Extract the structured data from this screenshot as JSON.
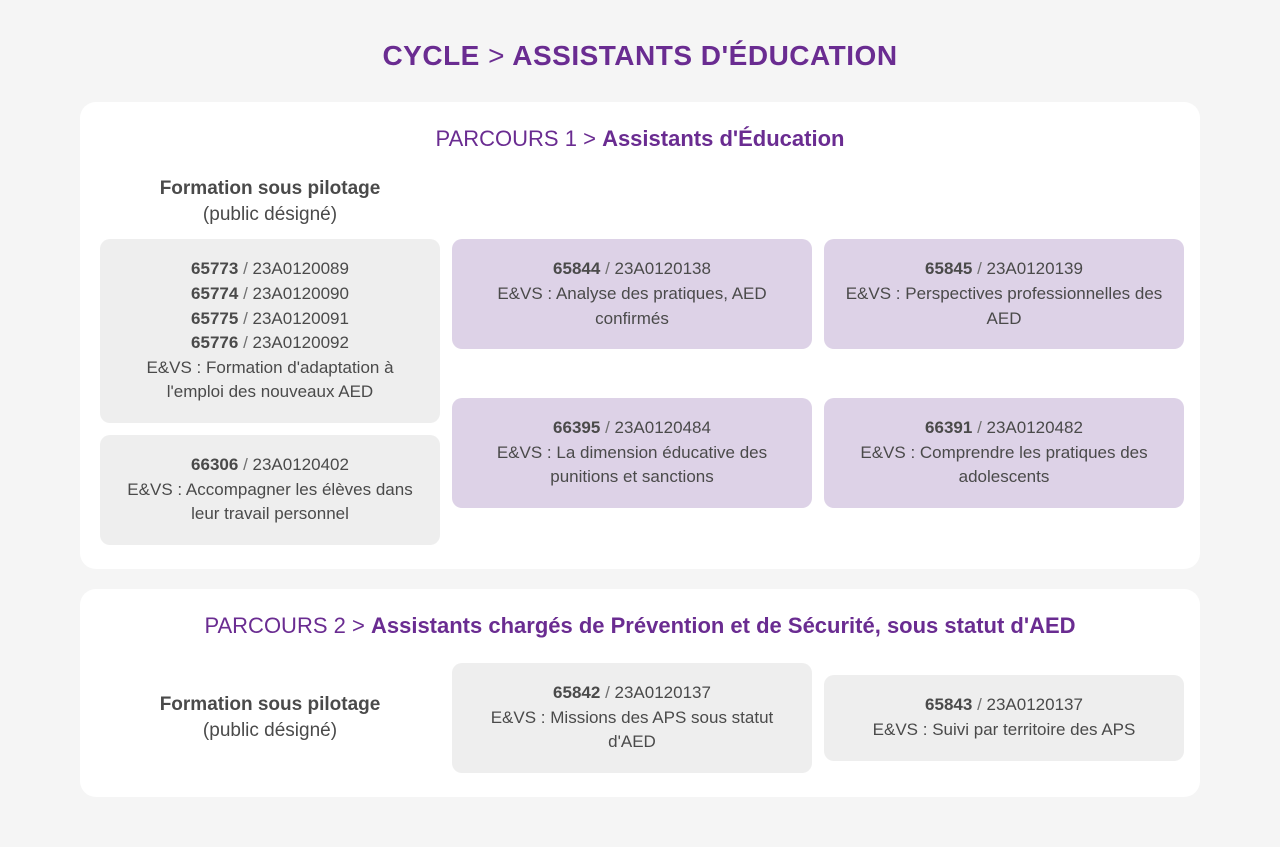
{
  "colors": {
    "background": "#f5f5f5",
    "panel_bg": "#ffffff",
    "card_gray": "#eeeeee",
    "card_lavender": "#ddd2e7",
    "accent": "#6a2c91",
    "text": "#4a4a4a",
    "sep": "#707070"
  },
  "typography": {
    "title_fontsize": 28,
    "title_weight": 700,
    "parcours_fontsize": 22,
    "section_fontsize": 19,
    "card_fontsize": 17
  },
  "page_title": {
    "left": "CYCLE",
    "sep": ">",
    "right": "ASSISTANTS D'ÉDUCATION"
  },
  "parcours1": {
    "title": {
      "pre": "PARCOURS 1",
      "sep": ">",
      "name": "Assistants d'Éducation"
    },
    "section_header": {
      "line1": "Formation sous pilotage",
      "line2": "(public désigné)"
    },
    "col1": {
      "multi": {
        "codes": [
          {
            "a": "65773",
            "b": "23A0120089"
          },
          {
            "a": "65774",
            "b": "23A0120090"
          },
          {
            "a": "65775",
            "b": "23A0120091"
          },
          {
            "a": "65776",
            "b": "23A0120092"
          }
        ],
        "prefix": "E&VS :",
        "desc": "Formation d'adaptation à l'emploi des nouveaux AED"
      },
      "single": {
        "code": {
          "a": "66306",
          "b": "23A0120402"
        },
        "prefix": "E&VS :",
        "desc": "Accompagner les élèves dans leur travail personnel"
      }
    },
    "lav": {
      "r1c1": {
        "code": {
          "a": "65844",
          "b": "23A0120138"
        },
        "prefix": "E&VS :",
        "desc": "Analyse des pratiques, AED confirmés"
      },
      "r1c2": {
        "code": {
          "a": "65845",
          "b": "23A0120139"
        },
        "prefix": "E&VS :",
        "desc": "Perspectives professionnelles des AED"
      },
      "r2c1": {
        "code": {
          "a": "66395",
          "b": "23A0120484"
        },
        "prefix": "E&VS :",
        "desc": "La dimension éducative des punitions et sanctions"
      },
      "r2c2": {
        "code": {
          "a": "66391",
          "b": "23A0120482"
        },
        "prefix": "E&VS :",
        "desc": "Comprendre les pratiques des adolescents"
      }
    }
  },
  "parcours2": {
    "title": {
      "pre": "PARCOURS 2",
      "sep": ">",
      "name": "Assistants chargés de Prévention et de Sécurité, sous statut d'AED"
    },
    "section_header": {
      "line1": "Formation sous pilotage",
      "line2": "(public désigné)"
    },
    "cards": {
      "c1": {
        "code": {
          "a": "65842",
          "b": "23A0120137"
        },
        "prefix": "E&VS :",
        "desc": "Missions des APS sous statut d'AED"
      },
      "c2": {
        "code": {
          "a": "65843",
          "b": "23A0120137"
        },
        "prefix": "E&VS :",
        "desc": "Suivi par territoire des APS"
      }
    }
  }
}
